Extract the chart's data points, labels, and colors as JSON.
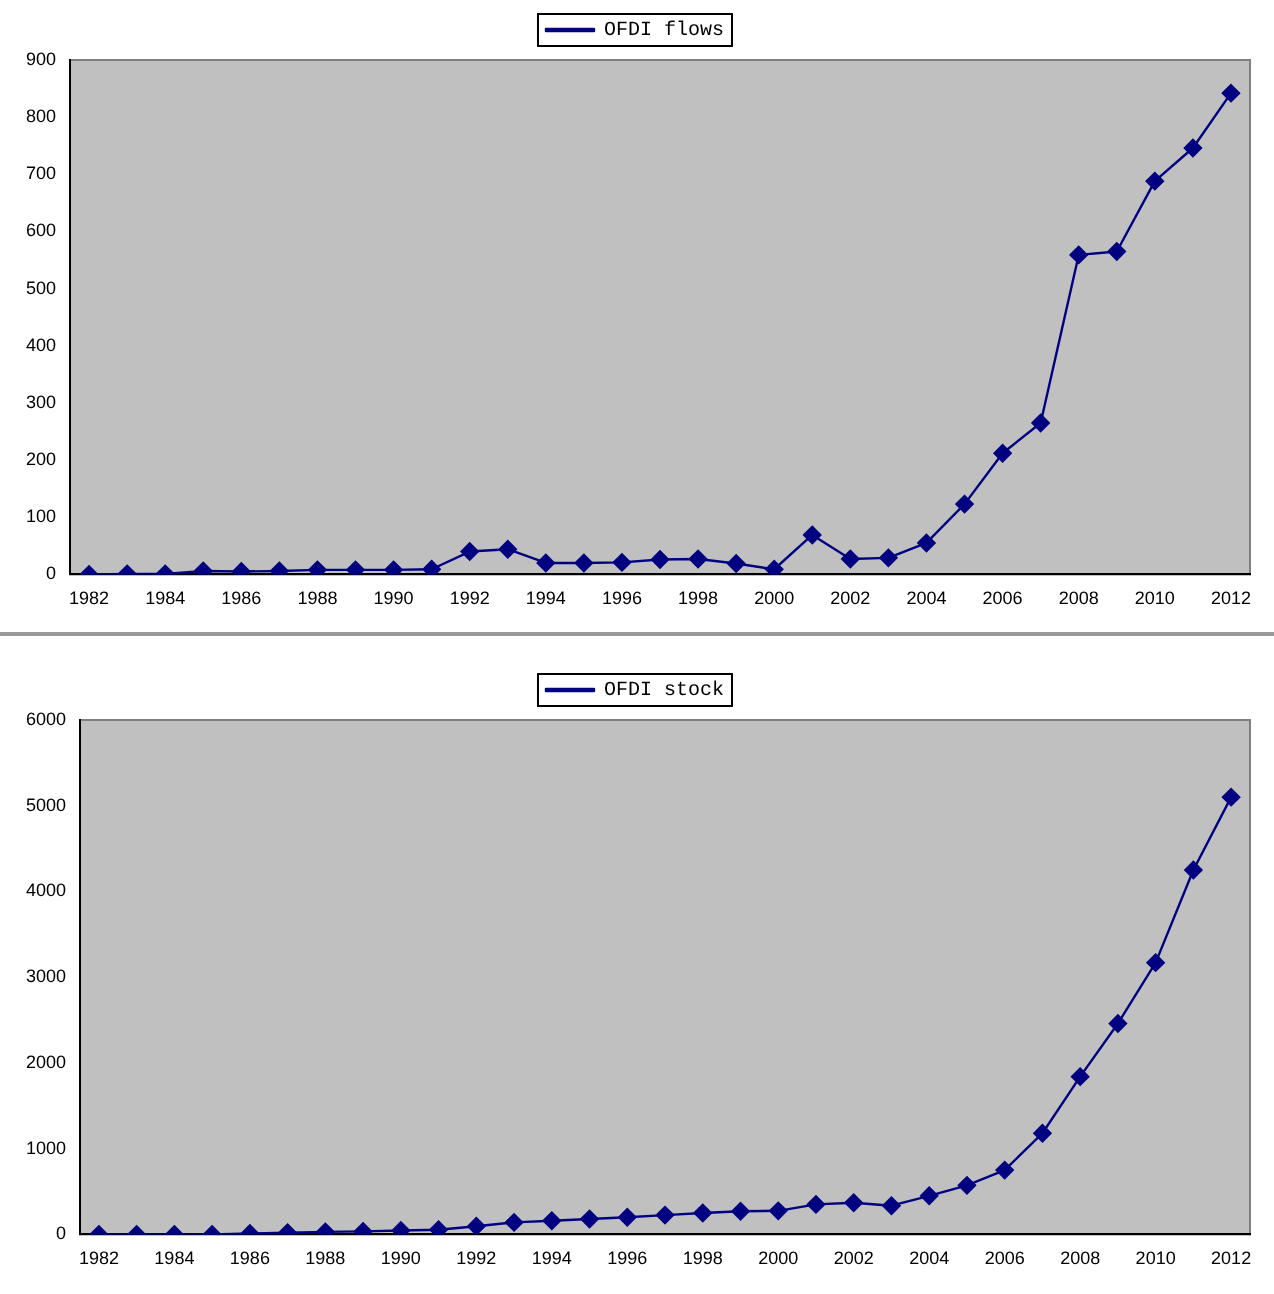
{
  "chart_data": [
    {
      "type": "line",
      "categories": [
        "1982",
        null,
        "1984",
        null,
        "1986",
        null,
        "1988",
        null,
        "1990",
        null,
        "1992",
        null,
        "1994",
        null,
        "1996",
        null,
        "1998",
        null,
        "2000",
        null,
        "2002",
        null,
        "2004",
        null,
        "2006",
        null,
        "2008",
        null,
        "2010",
        null,
        "2012"
      ],
      "series": [
        {
          "name": "OFDI flows",
          "color": "#000080",
          "values": [
            0,
            1,
            1,
            6,
            5,
            6,
            8,
            8,
            8,
            9,
            40,
            44,
            20,
            20,
            21,
            26,
            27,
            19,
            9,
            69,
            27,
            29,
            55,
            123,
            212,
            265,
            559,
            565,
            688,
            746,
            842
          ]
        }
      ],
      "ylim": [
        0,
        900
      ],
      "yticks": [
        0,
        100,
        200,
        300,
        400,
        500,
        600,
        700,
        800,
        900
      ],
      "grid": false,
      "legend": "top",
      "marker": "diamond",
      "line_style": "solid"
    },
    {
      "type": "line",
      "categories": [
        "1982",
        null,
        "1984",
        null,
        "1986",
        null,
        "1988",
        null,
        "1990",
        null,
        "1992",
        null,
        "1994",
        null,
        "1996",
        null,
        "1998",
        null,
        "2000",
        null,
        "2002",
        null,
        "2004",
        null,
        "2006",
        null,
        "2008",
        null,
        "2010",
        null,
        "2012"
      ],
      "series": [
        {
          "name": "OFDI stock",
          "color": "#000080",
          "values": [
            0,
            0,
            0,
            0,
            10,
            20,
            30,
            35,
            45,
            55,
            95,
            140,
            160,
            180,
            200,
            225,
            250,
            270,
            275,
            350,
            370,
            335,
            450,
            572,
            750,
            1180,
            1840,
            2460,
            3170,
            4250,
            5100
          ]
        }
      ],
      "ylim": [
        0,
        6000
      ],
      "yticks": [
        0,
        1000,
        2000,
        3000,
        4000,
        5000,
        6000
      ],
      "grid": false,
      "legend": "top",
      "marker": "diamond",
      "line_style": "solid"
    }
  ]
}
